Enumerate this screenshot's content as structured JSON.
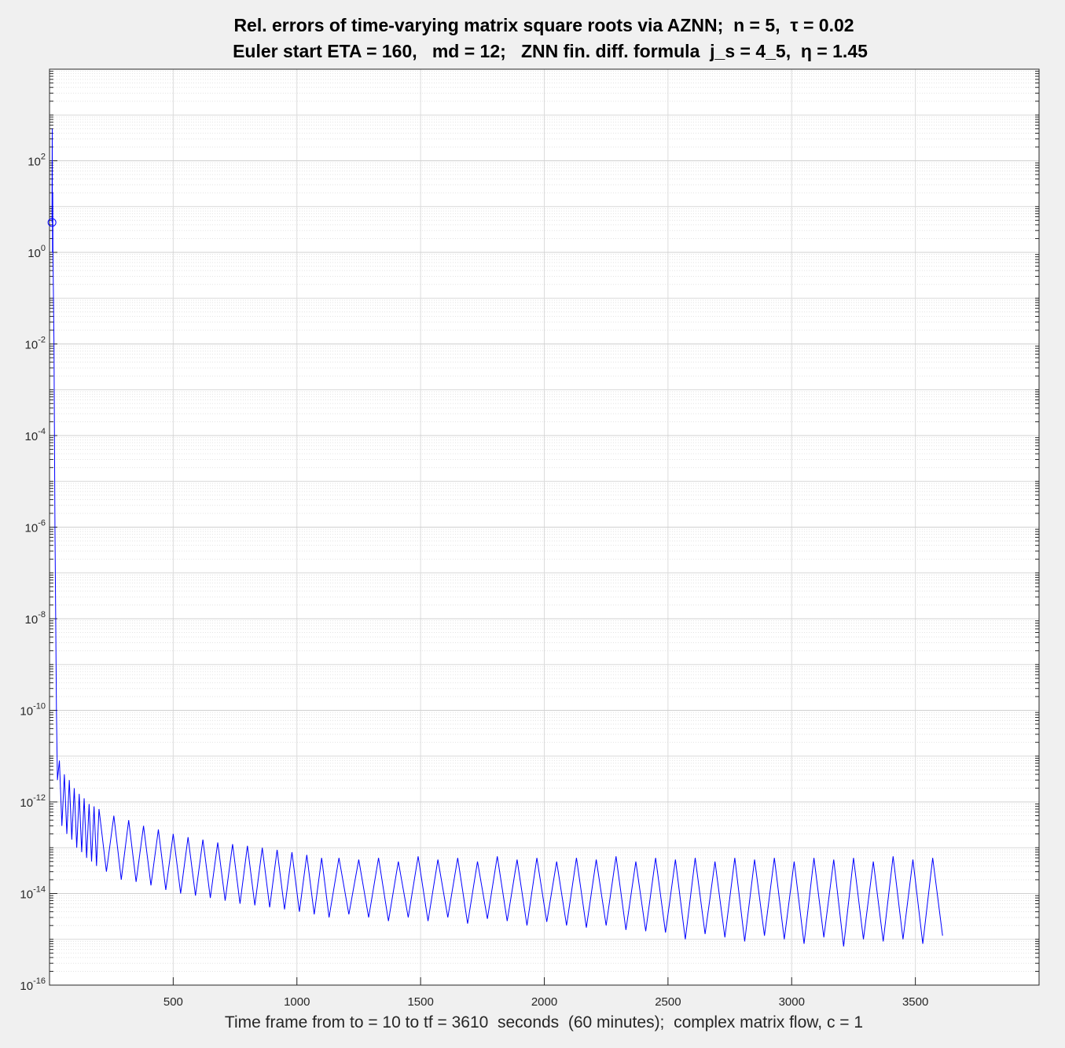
{
  "chart_data": {
    "type": "line",
    "title": [
      "Rel. errors of time-varying matrix square roots via AZNN;  n = 5,  τ = 0.02",
      "Euler start ETA = 160,   md = 12;   ZNN fin. diff. formula  j_s = 4_5,  η = 1.45"
    ],
    "xlabel": "Time frame from to = 10 to tf = 3610  seconds  (60 minutes);  complex matrix flow, c = 1",
    "color": "#0000ff",
    "log_y": true,
    "grid": true,
    "minor_grid": true,
    "first_marker": true,
    "xlim": [
      0,
      4000
    ],
    "xticks": [
      500,
      1000,
      1500,
      2000,
      2500,
      3000,
      3500
    ],
    "ylim": [
      1e-16,
      10000
    ],
    "yticks": [
      {
        "value": 100,
        "label": "10^2"
      },
      {
        "value": 1,
        "label": "10^0"
      },
      {
        "value": 0.01,
        "label": "10^-2"
      },
      {
        "value": 0.0001,
        "label": "10^-4"
      },
      {
        "value": 1e-06,
        "label": "10^-6"
      },
      {
        "value": 1e-08,
        "label": "10^-8"
      },
      {
        "value": 1e-10,
        "label": "10^-10"
      },
      {
        "value": 1e-12,
        "label": "10^-12"
      },
      {
        "value": 1e-14,
        "label": "10^-14"
      },
      {
        "value": 1e-16,
        "label": "10^-16"
      }
    ],
    "x": [
      10,
      11,
      12,
      13,
      14,
      16,
      18,
      20,
      22,
      25,
      28,
      32,
      40,
      50,
      60,
      70,
      80,
      90,
      100,
      110,
      120,
      130,
      140,
      150,
      160,
      170,
      180,
      190,
      200,
      230,
      260,
      290,
      320,
      350,
      380,
      410,
      440,
      470,
      500,
      530,
      560,
      590,
      620,
      650,
      680,
      710,
      740,
      770,
      800,
      830,
      860,
      890,
      920,
      950,
      980,
      1010,
      1040,
      1070,
      1100,
      1130,
      1170,
      1210,
      1250,
      1290,
      1330,
      1370,
      1410,
      1450,
      1490,
      1530,
      1570,
      1610,
      1650,
      1690,
      1730,
      1770,
      1810,
      1850,
      1890,
      1930,
      1970,
      2010,
      2050,
      2090,
      2130,
      2170,
      2210,
      2250,
      2290,
      2330,
      2370,
      2410,
      2450,
      2490,
      2530,
      2570,
      2610,
      2650,
      2690,
      2730,
      2770,
      2810,
      2850,
      2890,
      2930,
      2970,
      3010,
      3050,
      3090,
      3130,
      3170,
      3210,
      3250,
      3290,
      3330,
      3370,
      3410,
      3450,
      3490,
      3530,
      3570,
      3610
    ],
    "values": [
      4.5,
      500,
      1,
      20,
      0.7,
      0.1,
      0.01,
      0.0001,
      1e-06,
      1e-08,
      1e-10,
      3e-12,
      8e-12,
      3e-13,
      4e-12,
      2e-13,
      3e-12,
      1.5e-13,
      2e-12,
      1e-13,
      1.5e-12,
      8e-14,
      1.2e-12,
      6e-14,
      9e-13,
      5e-14,
      8e-13,
      4e-14,
      7e-13,
      3e-14,
      5e-13,
      2e-14,
      4e-13,
      1.8e-14,
      3e-13,
      1.5e-14,
      2.5e-13,
      1.2e-14,
      2e-13,
      1e-14,
      1.7e-13,
      9e-15,
      1.5e-13,
      8e-15,
      1.3e-13,
      7e-15,
      1.2e-13,
      6e-15,
      1.1e-13,
      5.5e-15,
      1e-13,
      5e-15,
      9e-14,
      4.5e-15,
      8e-14,
      4e-15,
      7e-14,
      3.5e-15,
      6e-14,
      3e-15,
      6e-14,
      3.5e-15,
      5.5e-14,
      3e-15,
      6e-14,
      2.5e-15,
      5e-14,
      3e-15,
      6.5e-14,
      2.5e-15,
      5.5e-14,
      3e-15,
      6e-14,
      2.2e-15,
      5e-14,
      2.8e-15,
      6.5e-14,
      2.5e-15,
      5.5e-14,
      2e-15,
      6e-14,
      2.4e-15,
      5e-14,
      2e-15,
      6e-14,
      1.8e-15,
      5.5e-14,
      2e-15,
      6.5e-14,
      1.6e-15,
      5e-14,
      1.5e-15,
      6e-14,
      1.4e-15,
      5.5e-14,
      1e-15,
      6e-14,
      1.3e-15,
      5e-14,
      1.1e-15,
      6e-14,
      9e-16,
      5.5e-14,
      1.2e-15,
      6e-14,
      1e-15,
      5e-14,
      8e-16,
      6e-14,
      1.1e-15,
      5.5e-14,
      7e-16,
      6e-14,
      1e-15,
      5e-14,
      9e-16,
      6.5e-14,
      1e-15,
      5.5e-14,
      8e-16,
      6e-14,
      1.2e-15
    ]
  }
}
